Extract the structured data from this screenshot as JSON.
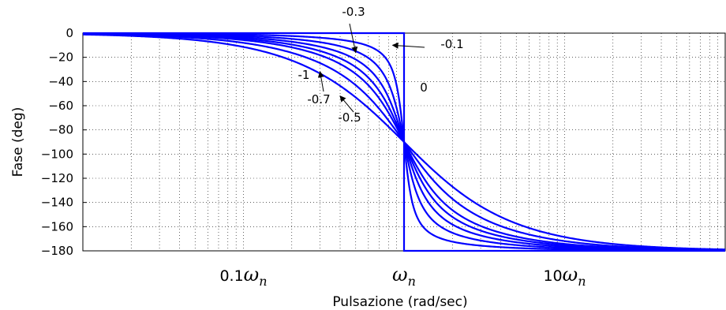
{
  "chart_data": {
    "type": "line",
    "title": "",
    "xlabel": "Pulsazione (rad/sec)",
    "ylabel": "Fase (deg)",
    "x_scale": "log",
    "x_unit": "omega/omega_n",
    "xlim": [
      0.01,
      100
    ],
    "ylim": [
      -180,
      0
    ],
    "grid": true,
    "yticks": [
      0,
      -20,
      -40,
      -60,
      -80,
      -100,
      -120,
      -140,
      -160,
      -180
    ],
    "xtick_labels": [
      {
        "value": 0.1,
        "number": "0.1",
        "symbol": "ω",
        "sub": "n"
      },
      {
        "value": 1,
        "number": "",
        "symbol": "ω",
        "sub": "n"
      },
      {
        "value": 10,
        "number": "10",
        "symbol": "ω",
        "sub": "n"
      }
    ],
    "line_color": "#0000ff",
    "series": [
      {
        "name": "0",
        "zeta": 0
      },
      {
        "name": "-0.1",
        "zeta": 0.1
      },
      {
        "name": "-0.3",
        "zeta": 0.3
      },
      {
        "name": "-0.5",
        "zeta": 0.5
      },
      {
        "name": "-0.7",
        "zeta": 0.7
      },
      {
        "name": "-1",
        "zeta": 1
      }
    ],
    "extra_zeta_curves": [
      0.2,
      0.4
    ],
    "annotations": [
      {
        "text": "-0.3",
        "arrow_to": {
          "omega": 0.5,
          "phase": -16
        }
      },
      {
        "text": "-0.1",
        "arrow_to": {
          "omega": 0.85,
          "phase": -10
        }
      },
      {
        "text": "0"
      },
      {
        "text": "-1"
      },
      {
        "text": "-0.7",
        "arrow_to": {
          "omega": 0.3,
          "phase": -32
        }
      },
      {
        "text": "-0.5",
        "arrow_to": {
          "omega": 0.4,
          "phase": -52
        }
      }
    ]
  }
}
